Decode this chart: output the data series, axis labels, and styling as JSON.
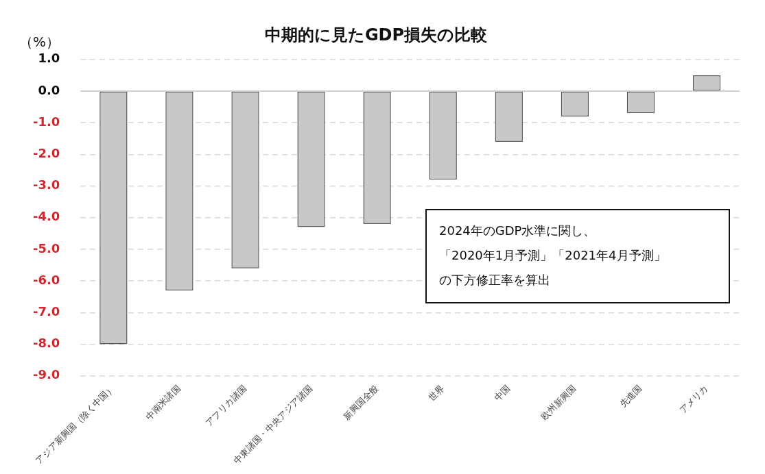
{
  "chart_data": {
    "type": "bar",
    "title": "中期的に見たGDP損失の比較",
    "ylabel": "（%）",
    "categories": [
      "アジア新興国（除く中国）",
      "中南米諸国",
      "アフリカ諸国",
      "中東諸国・中央アジア諸国",
      "新興国全般",
      "世界",
      "中国",
      "欧州新興国",
      "先進国",
      "アメリカ"
    ],
    "values": [
      -8.0,
      -6.3,
      -5.6,
      -4.3,
      -4.2,
      -2.8,
      -1.6,
      -0.8,
      -0.7,
      0.5
    ],
    "color": "#c8c8c8",
    "ylim": [
      -9.0,
      1.0
    ],
    "yticks": [
      {
        "value": 1,
        "label": "1.0"
      },
      {
        "value": 0,
        "label": "0.0"
      },
      {
        "value": -1,
        "label": "-1.0"
      },
      {
        "value": -2,
        "label": "-2.0"
      },
      {
        "value": -3,
        "label": "-3.0"
      },
      {
        "value": -4,
        "label": "-4.0"
      },
      {
        "value": -5,
        "label": "-5.0"
      },
      {
        "value": -6,
        "label": "-6.0"
      },
      {
        "value": -7,
        "label": "-7.0"
      },
      {
        "value": -8,
        "label": "-8.0"
      },
      {
        "value": -9,
        "label": "-9.0"
      }
    ],
    "grid": "y",
    "annotations": [
      "2024年のGDP水準に関し、",
      "「2020年1月予測」「2021年4月予測」",
      "の下方修正率を算出"
    ]
  }
}
